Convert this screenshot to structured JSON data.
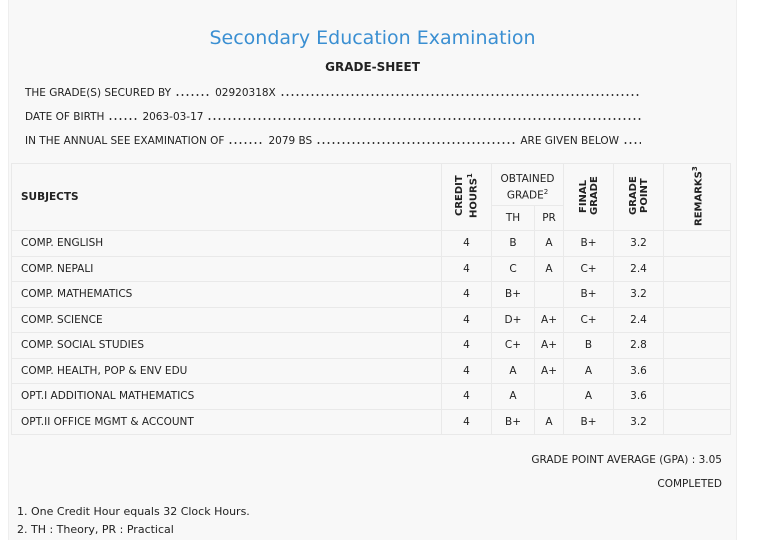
{
  "header": {
    "title": "Secondary Education Examination",
    "subtitle": "GRADE-SHEET"
  },
  "info": {
    "secured_by_label": "THE GRADE(S) SECURED BY",
    "secured_by_value": "02920318X",
    "dob_label": "DATE OF BIRTH",
    "dob_value": "2063-03-17",
    "exam_label": "IN THE ANNUAL SEE EXAMINATION OF",
    "exam_value": "2079 BS",
    "exam_tail": "ARE GIVEN BELOW"
  },
  "table": {
    "columns": {
      "subjects": "SUBJECTS",
      "credit_hours": "CREDIT HOURS",
      "credit_hours_note": "1",
      "obtained_grade": "OBTAINED GRADE",
      "obtained_grade_note": "2",
      "th": "TH",
      "pr": "PR",
      "final_grade": "FINAL GRADE",
      "grade_point": "GRADE POINT",
      "remarks": "REMARKS",
      "remarks_note": "3"
    },
    "rows": [
      {
        "subject": "COMP. ENGLISH",
        "credit_hours": 4,
        "th": "B",
        "pr": "A",
        "final_grade": "B+",
        "grade_point": 3.2
      },
      {
        "subject": "COMP. NEPALI",
        "credit_hours": 4,
        "th": "C",
        "pr": "A",
        "final_grade": "C+",
        "grade_point": 2.4
      },
      {
        "subject": "COMP. MATHEMATICS",
        "credit_hours": 4,
        "th": "B+",
        "pr": null,
        "final_grade": "B+",
        "grade_point": 3.2
      },
      {
        "subject": "COMP. SCIENCE",
        "credit_hours": 4,
        "th": "D+",
        "pr": "A+",
        "final_grade": "C+",
        "grade_point": 2.4
      },
      {
        "subject": "COMP. SOCIAL STUDIES",
        "credit_hours": 4,
        "th": "C+",
        "pr": "A+",
        "final_grade": "B",
        "grade_point": 2.8
      },
      {
        "subject": "COMP. HEALTH, POP & ENV EDU",
        "credit_hours": 4,
        "th": "A",
        "pr": "A+",
        "final_grade": "A",
        "grade_point": 3.6
      },
      {
        "subject": "OPT.I ADDITIONAL MATHEMATICS",
        "credit_hours": 4,
        "th": "A",
        "pr": null,
        "final_grade": "A",
        "grade_point": 3.6
      },
      {
        "subject": "OPT.II OFFICE MGMT & ACCOUNT",
        "credit_hours": 4,
        "th": "B+",
        "pr": "A",
        "final_grade": "B+",
        "grade_point": 3.2
      }
    ]
  },
  "summary": {
    "gpa_label": "GRADE POINT AVERAGE (GPA) :",
    "gpa_value": 3.05,
    "status": "COMPLETED"
  },
  "footnotes": [
    "1. One Credit Hour equals 32 Clock Hours.",
    "2. TH : Theory, PR : Practical"
  ]
}
